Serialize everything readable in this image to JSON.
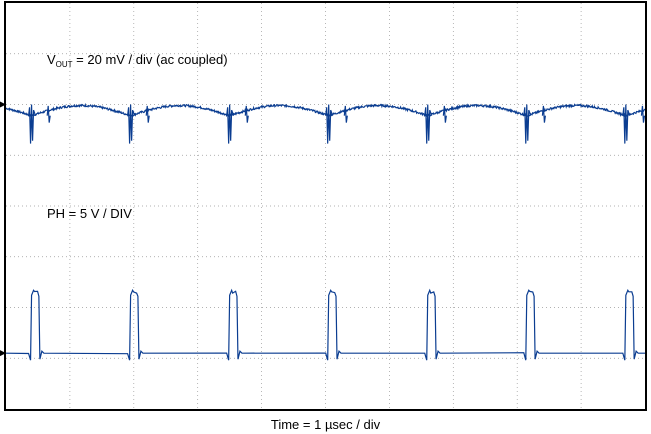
{
  "chart_data": {
    "type": "line",
    "title": "",
    "xlabel": "Time = 1 µsec / div",
    "ylabel": "",
    "grid": true,
    "x_divisions": 10,
    "y_divisions": 8,
    "trace_color": "#0b3d91",
    "grid_color": "#999999",
    "traces": [
      {
        "label_main": "V",
        "label_sub": "OUT",
        "label_rest": " = 20 mV / div (ac coupled)",
        "scale": "20 mV / div",
        "coupling": "ac coupled",
        "ground_level_div": 6,
        "ripple_amplitude_div": 0.1,
        "spike_amplitude_div": 0.55,
        "spike_times_us": [
          0.4,
          1.95,
          3.5,
          5.05,
          6.6,
          8.15,
          9.7
        ]
      },
      {
        "label_main": "PH = 5 V / DIV",
        "scale": "5 V / DIV",
        "ground_level_div": 1.1,
        "high_level_div": 2.3,
        "period_us": 1.55,
        "pulse_width_us": 0.13,
        "rise_times_us": [
          0.4,
          1.95,
          3.5,
          5.05,
          6.6,
          8.15,
          9.7
        ]
      }
    ]
  }
}
